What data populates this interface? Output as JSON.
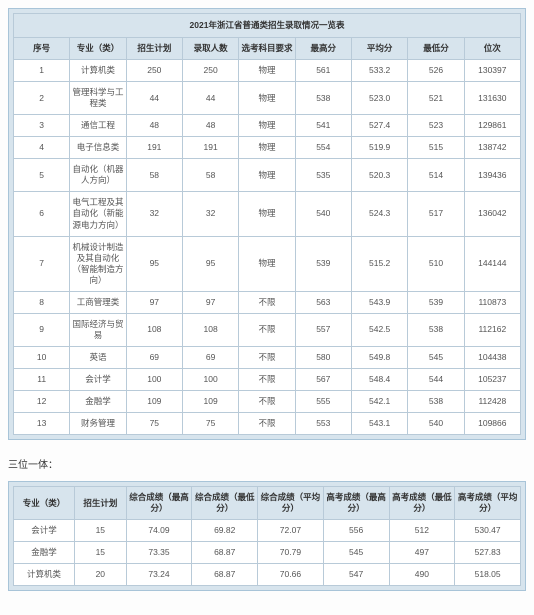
{
  "table1": {
    "title": "2021年浙江省普通类招生录取情况一览表",
    "headers": [
      "序号",
      "专业（类）",
      "招生计划",
      "录取人数",
      "选考科目要求",
      "最高分",
      "平均分",
      "最低分",
      "位次"
    ],
    "rows": [
      [
        "1",
        "计算机类",
        "250",
        "250",
        "物理",
        "561",
        "533.2",
        "526",
        "130397"
      ],
      [
        "2",
        "管理科学与工程类",
        "44",
        "44",
        "物理",
        "538",
        "523.0",
        "521",
        "131630"
      ],
      [
        "3",
        "通信工程",
        "48",
        "48",
        "物理",
        "541",
        "527.4",
        "523",
        "129861"
      ],
      [
        "4",
        "电子信息类",
        "191",
        "191",
        "物理",
        "554",
        "519.9",
        "515",
        "138742"
      ],
      [
        "5",
        "自动化（机器人方向）",
        "58",
        "58",
        "物理",
        "535",
        "520.3",
        "514",
        "139436"
      ],
      [
        "6",
        "电气工程及其自动化（新能源电力方向）",
        "32",
        "32",
        "物理",
        "540",
        "524.3",
        "517",
        "136042"
      ],
      [
        "7",
        "机械设计制造及其自动化（智能制造方向）",
        "95",
        "95",
        "物理",
        "539",
        "515.2",
        "510",
        "144144"
      ],
      [
        "8",
        "工商管理类",
        "97",
        "97",
        "不限",
        "563",
        "543.9",
        "539",
        "110873"
      ],
      [
        "9",
        "国际经济与贸易",
        "108",
        "108",
        "不限",
        "557",
        "542.5",
        "538",
        "112162"
      ],
      [
        "10",
        "英语",
        "69",
        "69",
        "不限",
        "580",
        "549.8",
        "545",
        "104438"
      ],
      [
        "11",
        "会计学",
        "100",
        "100",
        "不限",
        "567",
        "548.4",
        "544",
        "105237"
      ],
      [
        "12",
        "金融学",
        "109",
        "109",
        "不限",
        "555",
        "542.1",
        "538",
        "112428"
      ],
      [
        "13",
        "财务管理",
        "75",
        "75",
        "不限",
        "553",
        "543.1",
        "540",
        "109866"
      ]
    ]
  },
  "section_label": "三位一体：",
  "table2": {
    "headers": [
      "专业（类）",
      "招生计划",
      "综合成绩（最高分）",
      "综合成绩（最低分）",
      "综合成绩（平均分）",
      "高考成绩（最高分）",
      "高考成绩（最低分）",
      "高考成绩（平均分）"
    ],
    "rows": [
      [
        "会计学",
        "15",
        "74.09",
        "69.82",
        "72.07",
        "556",
        "512",
        "530.47"
      ],
      [
        "金融学",
        "15",
        "73.35",
        "68.87",
        "70.79",
        "545",
        "497",
        "527.83"
      ],
      [
        "计算机类",
        "20",
        "73.24",
        "68.87",
        "70.66",
        "547",
        "490",
        "518.05"
      ]
    ]
  },
  "colors": {
    "header_bg": "#d7e4ed",
    "border": "#b8cad8",
    "text": "#555"
  }
}
